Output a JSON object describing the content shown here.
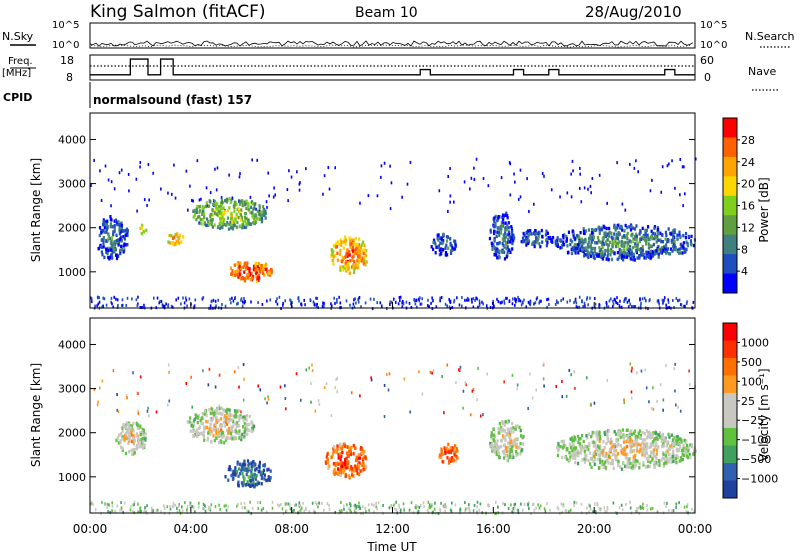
{
  "header": {
    "station": "King Salmon (fitACF)",
    "beam": "Beam 10",
    "date": "28/Aug/2010"
  },
  "top_panels": {
    "nsky_label": "N.Sky",
    "nsky_ticks": [
      "10^5",
      "10^0"
    ],
    "nsearch_label": "N.Search",
    "nsearch_ticks": [
      "10^5",
      "10^0"
    ],
    "freq_label": "Freq.",
    "freq_unit": "[MHz]",
    "freq_ticks": [
      "18",
      "8"
    ],
    "nave_label": "Nave",
    "nave_ticks": [
      "60",
      "0"
    ],
    "cpid_label": "CPID",
    "cpid_value": "normalsound (fast) 157"
  },
  "chart_data": [
    {
      "type": "heatmap",
      "panel": "power",
      "ylabel": "Slant Range [km]",
      "yticks": [
        "4000",
        "3000",
        "2000",
        "1000"
      ],
      "ylim": [
        180,
        4600
      ],
      "xlim": [
        0,
        24
      ],
      "colorbar_label": "Power [dB]",
      "colorbar_ticks": [
        "28",
        "24",
        "20",
        "16",
        "12",
        "8",
        "4"
      ],
      "colorbar_colors": [
        "#0000ff",
        "#1f4fbf",
        "#3f7f7f",
        "#5f9f3f",
        "#7fcf1f",
        "#ffd700",
        "#ffa500",
        "#ff6000",
        "#ff0000"
      ],
      "regions": [
        {
          "t": [
            1.9,
            2.2
          ],
          "r": [
            1900,
            2100
          ],
          "level": 0.6
        },
        {
          "t": [
            3.0,
            3.7
          ],
          "r": [
            1650,
            1900
          ],
          "level": 0.7
        },
        {
          "t": [
            4.0,
            7.0
          ],
          "r": [
            2000,
            2700
          ],
          "level": 0.45
        },
        {
          "t": [
            5.5,
            7.2
          ],
          "r": [
            800,
            1300
          ],
          "level": 0.85
        },
        {
          "t": [
            9.5,
            11.0
          ],
          "r": [
            1000,
            1850
          ],
          "level": 0.75
        },
        {
          "t": [
            13.5,
            14.5
          ],
          "r": [
            1400,
            1900
          ],
          "level": 0.2
        },
        {
          "t": [
            15.8,
            16.8
          ],
          "r": [
            1300,
            2400
          ],
          "level": 0.2
        },
        {
          "t": [
            17.0,
            18.4
          ],
          "r": [
            1600,
            2000
          ],
          "level": 0.2
        },
        {
          "t": [
            18.4,
            24.0
          ],
          "r": [
            1300,
            2100
          ],
          "level": 0.25
        },
        {
          "t": [
            0.2,
            1.5
          ],
          "r": [
            1300,
            2300
          ],
          "level": 0.2
        }
      ]
    },
    {
      "type": "heatmap",
      "panel": "velocity",
      "xlabel": "Time UT",
      "ylabel": "Slant Range [km]",
      "yticks": [
        "4000",
        "3000",
        "2000",
        "1000"
      ],
      "xticks": [
        "00:00",
        "04:00",
        "08:00",
        "12:00",
        "16:00",
        "20:00",
        "00:00"
      ],
      "ylim": [
        180,
        4600
      ],
      "xlim": [
        0,
        24
      ],
      "colorbar_label": "Velocity [m s⁻¹]",
      "colorbar_ticks": [
        "1000",
        "500",
        "100",
        "25",
        "−25",
        "−100",
        "−500",
        "−1000"
      ],
      "colorbar_colors": [
        "#2040a0",
        "#3060b0",
        "#40a060",
        "#60c040",
        "#c8c8c0",
        "#c8c8c0",
        "#ff9a20",
        "#ff7000",
        "#ff3000",
        "#ff0000"
      ],
      "regions": [
        {
          "t": [
            1.0,
            2.2
          ],
          "r": [
            1500,
            2300
          ],
          "level": 0.5
        },
        {
          "t": [
            3.8,
            6.5
          ],
          "r": [
            1800,
            2600
          ],
          "level": 0.5
        },
        {
          "t": [
            5.3,
            7.2
          ],
          "r": [
            800,
            1400
          ],
          "level": 0.15
        },
        {
          "t": [
            9.3,
            11.0
          ],
          "r": [
            1000,
            1800
          ],
          "level": 0.8
        },
        {
          "t": [
            13.8,
            14.6
          ],
          "r": [
            1300,
            1800
          ],
          "level": 0.8
        },
        {
          "t": [
            15.8,
            17.2
          ],
          "r": [
            1400,
            2300
          ],
          "level": 0.5
        },
        {
          "t": [
            18.4,
            24.0
          ],
          "r": [
            1200,
            2100
          ],
          "level": 0.5
        }
      ]
    }
  ]
}
